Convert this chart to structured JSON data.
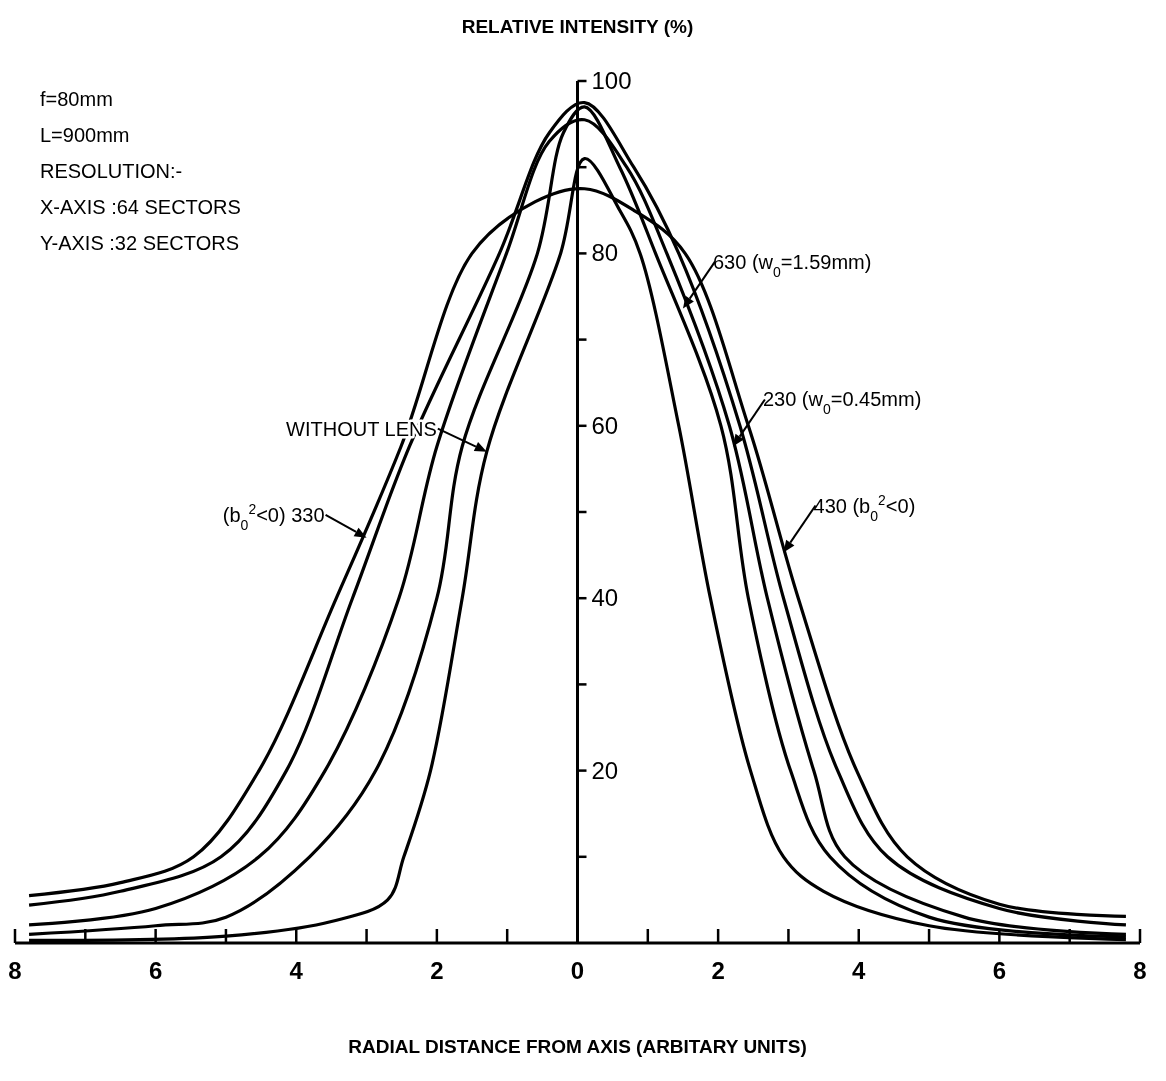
{
  "chart_data": {
    "type": "line",
    "ylabel": "RELATIVE INTENSITY (%)",
    "xlabel": "RADIAL DISTANCE FROM AXIS (ARBITARY UNITS)",
    "xlim": [
      -8,
      8
    ],
    "ylim": [
      0,
      100
    ],
    "xticks": [
      {
        "value": -8,
        "label": "8"
      },
      {
        "value": -7,
        "label": null
      },
      {
        "value": -6,
        "label": "6"
      },
      {
        "value": -5,
        "label": null
      },
      {
        "value": -4,
        "label": "4"
      },
      {
        "value": -3,
        "label": null
      },
      {
        "value": -2,
        "label": "2"
      },
      {
        "value": -1,
        "label": null
      },
      0,
      {
        "value": 1,
        "label": null
      },
      2,
      {
        "value": 3,
        "label": null
      },
      4,
      {
        "value": 5,
        "label": null
      },
      6,
      {
        "value": 7,
        "label": null
      },
      8
    ],
    "yticks": [
      {
        "value": 10,
        "label": null
      },
      20,
      {
        "value": 30,
        "label": null
      },
      40,
      {
        "value": 50,
        "label": null
      },
      60,
      {
        "value": 70,
        "label": null
      },
      80,
      {
        "value": 90,
        "label": null
      },
      100
    ],
    "series": [
      {
        "color": "#000000",
        "x": [
          -7.8,
          -6.5,
          -5.46,
          -4.53,
          -3.43,
          -2.51,
          -1.5,
          -0.6,
          0.1,
          0.8,
          1.53,
          2.43,
          3.14,
          3.97,
          4.69,
          6,
          7.8
        ],
        "values": [
          5.5,
          7,
          10,
          20,
          40,
          57.6,
          80,
          86,
          87.5,
          85,
          80,
          60,
          40,
          20,
          10,
          4.5,
          3.1
        ]
      },
      {
        "color": "#000000",
        "x": [
          -7.8,
          -6.5,
          -5.07,
          -4.14,
          -3.2,
          -2.39,
          -1.11,
          -0.4,
          0.1,
          0.8,
          1.44,
          2.31,
          2.93,
          3.7,
          4.41,
          6,
          7.8
        ],
        "values": [
          4.4,
          6,
          10,
          20,
          40,
          57.6,
          80,
          94,
          97.5,
          90,
          80,
          60,
          40,
          20,
          10,
          4,
          2.1
        ]
      },
      {
        "color": "#000000",
        "x": [
          -7.8,
          -6,
          -4.53,
          -3.59,
          -2.54,
          -2,
          -1.01,
          -0.4,
          0.1,
          0.7,
          1.27,
          2.16,
          2.7,
          3.36,
          3.8,
          5.5,
          7.8
        ],
        "values": [
          2.1,
          4,
          10,
          20,
          40,
          57.6,
          80,
          93,
          95.5,
          90,
          80,
          60,
          40,
          20,
          10,
          3,
          1
        ]
      },
      {
        "color": "#000000",
        "x": [
          -7.8,
          -6,
          -5,
          -3.81,
          -2.87,
          -2,
          -1.64,
          -0.57,
          -0.2,
          0.1,
          0.6,
          1.11,
          2.04,
          2.43,
          3.03,
          3.59,
          5,
          7.8
        ],
        "values": [
          1,
          2,
          3,
          10,
          20,
          40,
          57.6,
          80,
          94,
          97,
          90,
          80,
          60,
          40,
          20,
          10,
          3,
          0.7
        ]
      },
      {
        "color": "#000000",
        "x": [
          -7.8,
          -5,
          -3.5,
          -2.7,
          -2.47,
          -2.09,
          -1.64,
          -1.29,
          -0.24,
          0.1,
          0.6,
          0.89,
          1.44,
          1.89,
          2.46,
          2.93,
          3.5,
          5,
          7.8
        ],
        "values": [
          0.3,
          0.8,
          2.5,
          5,
          10,
          20,
          40,
          57,
          80,
          91,
          85,
          80,
          60,
          40,
          20,
          10,
          6,
          2,
          0.4
        ]
      }
    ],
    "annotations": [
      "f=80mm",
      "L=900mm",
      "RESOLUTION:-",
      "X-AXIS :64 SECTORS",
      "Y-AXIS :32 SECTORS",
      {
        "text": "WITHOUT LENS",
        "x": -1.29,
        "y": 57
      },
      {
        "text": "(b$_{0}$$^{2}$<0) 330",
        "x": -3.0,
        "y": 47
      },
      {
        "text": "630 (w$_{0}$=1.59mm)",
        "x": 1.5,
        "y": 73.6
      },
      {
        "text": "230 (w$_{0}$=0.45mm)",
        "x": 2.21,
        "y": 57.6
      },
      {
        "text": "430 (b$_{0}$$^{2}$<0)",
        "x": 2.93,
        "y": 45.3
      }
    ]
  }
}
